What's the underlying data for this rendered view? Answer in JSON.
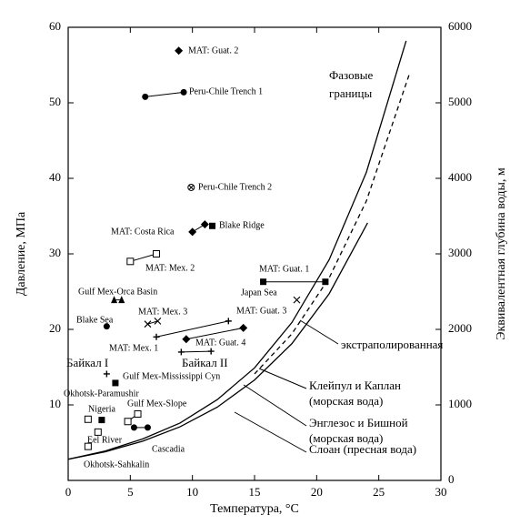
{
  "chart_data": {
    "type": "scatter",
    "xlabel": "Температура, °С",
    "ylabel": "Давление, МПа",
    "y2label": "Эквивалентная глубина воды, м",
    "xlim": [
      0,
      30
    ],
    "ylim": [
      0,
      60
    ],
    "y2lim": [
      0,
      6000
    ],
    "xticks": [
      0,
      5,
      10,
      15,
      20,
      25,
      30
    ],
    "yticks": [
      10,
      20,
      30,
      40,
      50,
      60
    ],
    "y2ticks": [
      0,
      1000,
      2000,
      3000,
      4000,
      5000,
      6000
    ],
    "color": "#000000",
    "sites": [
      {
        "name": "MAT: Guat. 2",
        "marker": "diamond",
        "x": [
          8.9
        ],
        "y": [
          56.9
        ]
      },
      {
        "name": "Peru-Chile Trench 1",
        "marker": "circle",
        "x": [
          6.2,
          9.3
        ],
        "y": [
          50.8,
          51.4
        ]
      },
      {
        "name": "Peru-Chile Trench 2",
        "marker": "crossed-circle",
        "x": [
          9.9
        ],
        "y": [
          38.8
        ]
      },
      {
        "name": "MAT: Costa Rica",
        "marker": "diamond",
        "x": [
          10.0,
          11.0
        ],
        "y": [
          32.9,
          33.9
        ]
      },
      {
        "name": "Blake Ridge",
        "marker": "filled-square",
        "x": [
          11.6
        ],
        "y": [
          33.7
        ]
      },
      {
        "name": "MAT: Mex. 2",
        "marker": "open-square",
        "x": [
          5.0,
          7.1
        ],
        "y": [
          29.0,
          30.0
        ]
      },
      {
        "name": "MAT: Guat. 1",
        "marker": "filled-square",
        "x": [
          15.7,
          20.7
        ],
        "y": [
          26.3,
          26.3
        ]
      },
      {
        "name": "Japan Sea",
        "marker": "x",
        "x": [
          18.4
        ],
        "y": [
          23.9
        ]
      },
      {
        "name": "Gulf Mex-Orca Basin",
        "marker": "triangle",
        "x": [
          3.7,
          4.3
        ],
        "y": [
          23.9,
          23.9
        ]
      },
      {
        "name": "Blake Sea",
        "marker": "circle",
        "x": [
          3.1
        ],
        "y": [
          20.4
        ]
      },
      {
        "name": "MAT: Mex. 3",
        "marker": "x",
        "x": [
          6.4,
          7.2
        ],
        "y": [
          20.7,
          21.1
        ]
      },
      {
        "name": "MAT: Guat. 3",
        "marker": "plus",
        "x": [
          7.1,
          12.9
        ],
        "y": [
          19.0,
          21.1
        ]
      },
      {
        "name": "MAT: Guat. 4",
        "marker": "diamond",
        "x": [
          9.5,
          14.1
        ],
        "y": [
          18.7,
          20.2
        ]
      },
      {
        "name": "MAT: Mex. 1",
        "marker": "plus",
        "x": [
          9.1,
          11.5
        ],
        "y": [
          17.0,
          17.1
        ]
      },
      {
        "name": "Байкал I",
        "marker": "plus",
        "x": [
          3.1
        ],
        "y": [
          14.1
        ]
      },
      {
        "name": "Gulf Mex-Mississippi Cyn",
        "marker": "filled-square",
        "x": [
          3.8
        ],
        "y": [
          12.9
        ]
      },
      {
        "name": "Okhotsk-Paramushir",
        "marker": "open-square",
        "x": [
          1.6
        ],
        "y": [
          8.1
        ]
      },
      {
        "name": "Nigeria",
        "marker": "filled-square",
        "x": [
          2.7
        ],
        "y": [
          8.0
        ]
      },
      {
        "name": "Gulf Mex-Slope",
        "marker": "open-square",
        "x": [
          4.8,
          5.6
        ],
        "y": [
          7.8,
          8.8
        ]
      },
      {
        "name": "Eel River",
        "marker": "open-square",
        "x": [
          2.4
        ],
        "y": [
          6.4
        ]
      },
      {
        "name": "Cascadia",
        "marker": "circle",
        "x": [
          5.3,
          6.4
        ],
        "y": [
          7.0,
          7.0
        ]
      },
      {
        "name": "Okhotsk-Sahkalin",
        "marker": "open-square",
        "x": [
          1.6
        ],
        "y": [
          4.5
        ]
      }
    ],
    "curves": [
      {
        "label": [
          "Клейпул и Каплан",
          "(морская вода)"
        ],
        "dash": false,
        "x": [
          0,
          3,
          6,
          9,
          12,
          15,
          18,
          21,
          24,
          27.2
        ],
        "y": [
          2.8,
          3.9,
          5.5,
          7.6,
          10.7,
          14.9,
          20.9,
          29.2,
          40.8,
          58.2
        ]
      },
      {
        "label": [
          "Энглезос и Бишной",
          "(морская вода)"
        ],
        "dash": true,
        "x": [
          15,
          18,
          21,
          24,
          27.5
        ],
        "y": [
          14.1,
          19.4,
          26.8,
          37.0,
          54.0
        ]
      },
      {
        "label": [
          "Слоан (пресная вода)"
        ],
        "dash": false,
        "x": [
          0,
          3,
          6,
          9,
          12,
          15,
          18,
          21,
          24.1
        ],
        "y": [
          2.8,
          3.8,
          5.2,
          7.1,
          9.7,
          13.3,
          18.1,
          24.7,
          34.1
        ]
      }
    ],
    "annotations": [
      {
        "text": [
          "Фазовые",
          "границы"
        ]
      },
      {
        "text": [
          "экстраполированная"
        ]
      },
      {
        "text": [
          "Байкал II"
        ]
      }
    ]
  }
}
